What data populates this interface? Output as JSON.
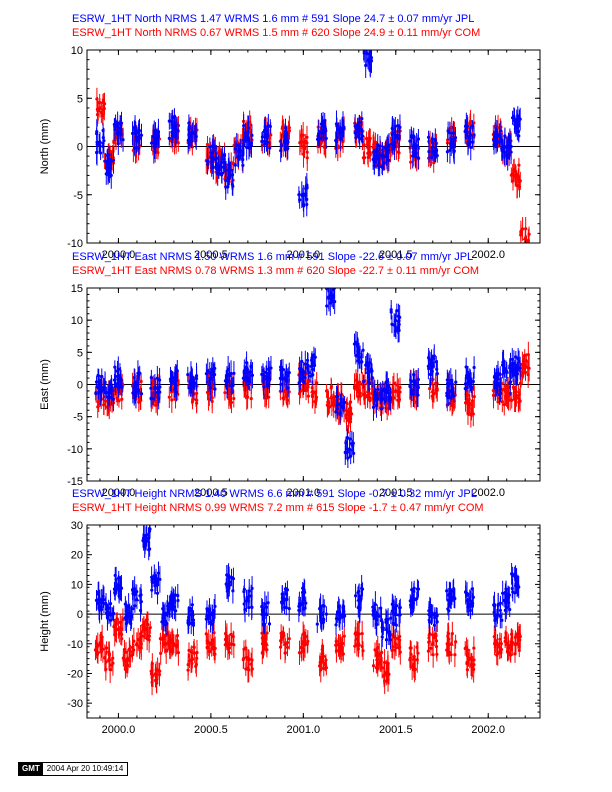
{
  "chart_data": [
    {
      "type": "scatter",
      "titles": [
        {
          "text": "ESRW_1HT North NRMS 1.47 WRMS  1.6 mm # 591 Slope   24.7 ±  0.07 mm/yr JPL",
          "color": "#0000ff"
        },
        {
          "text": "ESRW_1HT North NRMS 0.67 WRMS  1.5 mm # 620 Slope   24.9 ±  0.11 mm/yr COM",
          "color": "#ff0000"
        }
      ],
      "ylabel": "North (mm)",
      "xlabel": "",
      "xlim": [
        1999.83,
        2002.28
      ],
      "ylim": [
        -10,
        10
      ],
      "yticks": [
        -10,
        -5,
        0,
        5,
        10
      ],
      "xticks": [
        "2000.0",
        "2000.5",
        "2001.0",
        "2001.5",
        "2002.0"
      ],
      "series": [
        {
          "name": "JPL",
          "color": "#0000ff",
          "x": [
            1999.9,
            1999.95,
            2000.0,
            2000.1,
            2000.2,
            2000.3,
            2000.4,
            2000.5,
            2000.55,
            2000.6,
            2000.65,
            2000.7,
            2000.8,
            2000.9,
            2001.0,
            2001.1,
            2001.2,
            2001.3,
            2001.35,
            2001.4,
            2001.45,
            2001.5,
            2001.6,
            2001.7,
            2001.8,
            2001.9,
            2002.05,
            2002.1,
            2002.15
          ],
          "y": [
            0.5,
            -2,
            1.5,
            1,
            0.5,
            2,
            1.5,
            -1,
            -2,
            -3,
            -1,
            1,
            1,
            0.5,
            -5,
            1.5,
            1.5,
            2,
            9,
            -1,
            -1,
            1,
            0,
            0,
            0.5,
            1,
            0.5,
            0,
            2
          ]
        },
        {
          "name": "COM",
          "color": "#ff0000",
          "x": [
            1999.9,
            1999.95,
            2000.0,
            2000.1,
            2000.2,
            2000.3,
            2000.4,
            2000.5,
            2000.55,
            2000.6,
            2000.65,
            2000.7,
            2000.8,
            2000.9,
            2001.0,
            2001.1,
            2001.2,
            2001.3,
            2001.35,
            2001.4,
            2001.45,
            2001.5,
            2001.6,
            2001.7,
            2001.8,
            2001.9,
            2002.05,
            2002.1,
            2002.15,
            2002.2
          ],
          "y": [
            4,
            -1,
            1,
            0.5,
            0.5,
            1.5,
            1,
            -0.5,
            -1.5,
            -2.5,
            -0.5,
            1.5,
            1,
            1,
            0,
            1,
            1,
            1.5,
            0,
            -0.5,
            -1,
            0.5,
            -0.5,
            -0.5,
            1,
            1.5,
            1,
            0,
            -3,
            -9.5
          ]
        }
      ]
    },
    {
      "type": "scatter",
      "titles": [
        {
          "text": "ESRW_1HT East NRMS 1.50 WRMS  1.6 mm # 591 Slope  -22.6 ±  0.07 mm/yr JPL",
          "color": "#0000ff"
        },
        {
          "text": "ESRW_1HT East NRMS 0.78 WRMS  1.3 mm # 620 Slope  -22.7 ±  0.11 mm/yr COM",
          "color": "#ff0000"
        }
      ],
      "ylabel": "East (mm)",
      "xlabel": "",
      "xlim": [
        1999.83,
        2002.28
      ],
      "ylim": [
        -15,
        15
      ],
      "yticks": [
        -15,
        -10,
        -5,
        0,
        5,
        10,
        15
      ],
      "xticks": [
        "2000.0",
        "2000.5",
        "2001.0",
        "2001.5",
        "2002.0"
      ],
      "series": [
        {
          "name": "JPL",
          "color": "#0000ff",
          "x": [
            1999.9,
            1999.95,
            2000.0,
            2000.1,
            2000.2,
            2000.3,
            2000.4,
            2000.5,
            2000.6,
            2000.7,
            2000.8,
            2000.9,
            2001.0,
            2001.05,
            2001.15,
            2001.2,
            2001.25,
            2001.3,
            2001.35,
            2001.4,
            2001.45,
            2001.5,
            2001.6,
            2001.7,
            2001.8,
            2001.9,
            2002.05,
            2002.1,
            2002.15
          ],
          "y": [
            0,
            -1,
            1,
            0,
            -0.5,
            0.5,
            1,
            1,
            1.5,
            2,
            1,
            1,
            2,
            3,
            14,
            -3,
            -10,
            5,
            2,
            -2,
            -1,
            10,
            0,
            3,
            -1,
            1,
            0,
            2,
            3
          ]
        },
        {
          "name": "COM",
          "color": "#ff0000",
          "x": [
            1999.9,
            1999.95,
            2000.0,
            2000.1,
            2000.2,
            2000.3,
            2000.4,
            2000.5,
            2000.6,
            2000.7,
            2000.8,
            2000.9,
            2001.0,
            2001.05,
            2001.15,
            2001.2,
            2001.25,
            2001.3,
            2001.35,
            2001.4,
            2001.45,
            2001.5,
            2001.6,
            2001.7,
            2001.8,
            2001.9,
            2002.05,
            2002.1,
            2002.15,
            2002.2
          ],
          "y": [
            -2,
            -3,
            -1,
            -1,
            -1.5,
            -1,
            -1.5,
            -1,
            -1,
            -0.5,
            -0.5,
            -1,
            0,
            -1,
            -2,
            -3,
            -4,
            -1,
            -1,
            -2,
            -2,
            -1,
            -1,
            -1,
            -2,
            -3,
            -1,
            -2,
            -1,
            3
          ]
        }
      ]
    },
    {
      "type": "scatter",
      "titles": [
        {
          "text": "ESRW_1HT Height NRMS 1.40 WRMS  6.6 mm # 591 Slope   -0.7 ±  0.32 mm/yr JPL",
          "color": "#0000ff"
        },
        {
          "text": "ESRW_1HT Height NRMS 0.99 WRMS  7.2 mm # 615 Slope   -1.7 ±  0.47 mm/yr COM",
          "color": "#ff0000"
        }
      ],
      "ylabel": "Height (mm)",
      "xlabel": "",
      "xlim": [
        1999.83,
        2002.28
      ],
      "ylim": [
        -35,
        30
      ],
      "yticks": [
        -30,
        -20,
        -10,
        0,
        10,
        20,
        30
      ],
      "xticks": [
        "2000.0",
        "2000.5",
        "2001.0",
        "2001.5",
        "2002.0"
      ],
      "series": [
        {
          "name": "JPL",
          "color": "#0000ff",
          "x": [
            1999.9,
            1999.95,
            2000.0,
            2000.05,
            2000.1,
            2000.15,
            2000.2,
            2000.25,
            2000.3,
            2000.4,
            2000.5,
            2000.6,
            2000.7,
            2000.8,
            2000.9,
            2001.0,
            2001.1,
            2001.2,
            2001.3,
            2001.4,
            2001.45,
            2001.5,
            2001.6,
            2001.7,
            2001.8,
            2001.9,
            2002.05,
            2002.1,
            2002.15
          ],
          "y": [
            5,
            0,
            10,
            0,
            5,
            25,
            10,
            0,
            5,
            0,
            0,
            10,
            5,
            0,
            5,
            5,
            0,
            0,
            5,
            0,
            -5,
            0,
            5,
            0,
            5,
            5,
            0,
            5,
            10
          ]
        },
        {
          "name": "COM",
          "color": "#ff0000",
          "x": [
            1999.9,
            1999.95,
            2000.0,
            2000.05,
            2000.1,
            2000.15,
            2000.2,
            2000.25,
            2000.3,
            2000.4,
            2000.5,
            2000.6,
            2000.7,
            2000.8,
            2000.9,
            2001.0,
            2001.1,
            2001.2,
            2001.3,
            2001.4,
            2001.45,
            2001.5,
            2001.6,
            2001.7,
            2001.8,
            2001.9,
            2002.05,
            2002.1,
            2002.15
          ],
          "y": [
            -10,
            -15,
            -5,
            -15,
            -10,
            -5,
            -20,
            -10,
            -10,
            -15,
            -10,
            -10,
            -15,
            -10,
            -10,
            -10,
            -15,
            -10,
            -10,
            -15,
            -20,
            -10,
            -15,
            -10,
            -10,
            -15,
            -10,
            -10,
            -10
          ]
        }
      ]
    }
  ],
  "footer": {
    "logo_text": "GMT",
    "timestamp": "2004 Apr 20 10:49:14"
  }
}
